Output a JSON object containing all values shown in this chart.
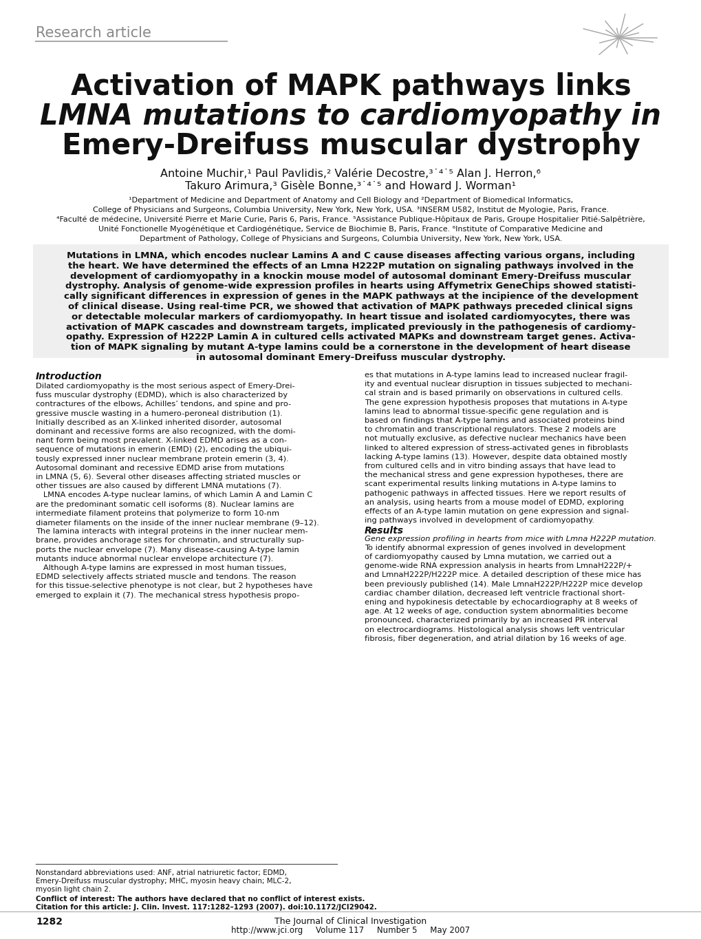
{
  "bg_color": "#ffffff",
  "header_label": "Research article",
  "title_line1": "Activation of MAPK pathways links",
  "title_line2a": "LMNA",
  "title_line2b": " mutations to cardiomyopathy in",
  "title_line3": "Emery-Dreifuss muscular dystrophy",
  "authors_line1": "Antoine Muchir,¹ Paul Pavlidis,² Valérie Decostre,³˙⁴˙⁵ Alan J. Herron,⁶",
  "authors_line2": "Takuro Arimura,³ Gisèle Bonne,³˙⁴˙⁵ and Howard J. Worman¹",
  "affil1": "¹Department of Medicine and Department of Anatomy and Cell Biology and ²Department of Biomedical Informatics,",
  "affil2": "College of Physicians and Surgeons, Columbia University, New York, New York, USA. ³INSERM U582, Institut de Myologie, Paris, France.",
  "affil3": "⁴Faculté de médecine, Université Pierre et Marie Curie, Paris 6, Paris, France. ⁵Assistance Publique-Hôpitaux de Paris, Groupe Hospitalier Pitié-Salpêtrière,",
  "affil4": "Unité Fonctionelle Myogénétique et Cardiogénétique, Service de Biochimie B, Paris, France. ⁶Institute of Comparative Medicine and",
  "affil5": "Department of Pathology, College of Physicians and Surgeons, Columbia University, New York, New York, USA.",
  "abstract_lines": [
    "Mutations in LMNA, which encodes nuclear Lamins A and C cause diseases affecting various organs, including",
    "the heart. We have determined the effects of an Lmna H222P mutation on signaling pathways involved in the",
    "development of cardiomyopathy in a knockin mouse model of autosomal dominant Emery-Dreifuss muscular",
    "dystrophy. Analysis of genome-wide expression profiles in hearts using Affymetrix GeneChips showed statisti-",
    "cally significant differences in expression of genes in the MAPK pathways at the incipience of the development",
    "of clinical disease. Using real-time PCR, we showed that activation of MAPK pathways preceded clinical signs",
    "or detectable molecular markers of cardiomyopathy. In heart tissue and isolated cardiomyocytes, there was",
    "activation of MAPK cascades and downstream targets, implicated previously in the pathogenesis of cardiomy-",
    "opathy. Expression of H222P Lamin A in cultured cells activated MAPKs and downstream target genes. Activa-",
    "tion of MAPK signaling by mutant A-type lamins could be a cornerstone in the development of heart disease",
    "in autosomal dominant Emery-Dreifuss muscular dystrophy."
  ],
  "intro_heading": "Introduction",
  "col1_lines": [
    "Dilated cardiomyopathy is the most serious aspect of Emery-Drei-",
    "fuss muscular dystrophy (EDMD), which is also characterized by",
    "contractures of the elbows, Achilles’ tendons, and spine and pro-",
    "gressive muscle wasting in a humero-peroneal distribution (1).",
    "Initially described as an X-linked inherited disorder, autosomal",
    "dominant and recessive forms are also recognized, with the domi-",
    "nant form being most prevalent. X-linked EDMD arises as a con-",
    "sequence of mutations in emerin (EMD) (2), encoding the ubiqui-",
    "tously expressed inner nuclear membrane protein emerin (3, 4).",
    "Autosomal dominant and recessive EDMD arise from mutations",
    "in LMNA (5, 6). Several other diseases affecting striated muscles or",
    "other tissues are also caused by different LMNA mutations (7).",
    "   LMNA encodes A-type nuclear lamins, of which Lamin A and Lamin C",
    "are the predominant somatic cell isoforms (8). Nuclear lamins are",
    "intermediate filament proteins that polymerize to form 10-nm",
    "diameter filaments on the inside of the inner nuclear membrane (9–12).",
    "The lamina interacts with integral proteins in the inner nuclear mem-",
    "brane, provides anchorage sites for chromatin, and structurally sup-",
    "ports the nuclear envelope (7). Many disease-causing A-type lamin",
    "mutants induce abnormal nuclear envelope architecture (7).",
    "   Although A-type lamins are expressed in most human tissues,",
    "EDMD selectively affects striated muscle and tendons. The reason",
    "for this tissue-selective phenotype is not clear, but 2 hypotheses have",
    "emerged to explain it (7). The mechanical stress hypothesis propo-"
  ],
  "col2_lines": [
    "es that mutations in A-type lamins lead to increased nuclear fragil-",
    "ity and eventual nuclear disruption in tissues subjected to mechani-",
    "cal strain and is based primarily on observations in cultured cells.",
    "The gene expression hypothesis proposes that mutations in A-type",
    "lamins lead to abnormal tissue-specific gene regulation and is",
    "based on findings that A-type lamins and associated proteins bind",
    "to chromatin and transcriptional regulators. These 2 models are",
    "not mutually exclusive, as defective nuclear mechanics have been",
    "linked to altered expression of stress-activated genes in fibroblasts",
    "lacking A-type lamins (13). However, despite data obtained mostly",
    "from cultured cells and in vitro binding assays that have lead to",
    "the mechanical stress and gene expression hypotheses, there are",
    "scant experimental results linking mutations in A-type lamins to",
    "pathogenic pathways in affected tissues. Here we report results of",
    "an analysis, using hearts from a mouse model of EDMD, exploring",
    "effects of an A-type lamin mutation on gene expression and signal-",
    "ing pathways involved in development of cardiomyopathy.",
    "   Results",
    "   Gene expression profiling in hearts from mice with Lmna H222P mutation.",
    "To identify abnormal expression of genes involved in development",
    "of cardiomyopathy caused by Lmna mutation, we carried out a",
    "genome-wide RNA expression analysis in hearts from LmnaH222P/+",
    "and LmnaH222P/H222P mice. A detailed description of these mice has",
    "been previously published (14). Male LmnaH222P/H222P mice develop",
    "cardiac chamber dilation, decreased left ventricle fractional short-",
    "ening and hypokinesis detectable by echocardiography at 8 weeks of",
    "age. At 12 weeks of age, conduction system abnormalities become",
    "pronounced, characterized primarily by an increased PR interval",
    "on electrocardiograms. Histological analysis shows left ventricular",
    "fibrosis, fiber degeneration, and atrial dilation by 16 weeks of age."
  ],
  "footer_abbrev_lines": [
    "Nonstandard abbreviations used: ANF, atrial natriuretic factor; EDMD,",
    "Emery-Dreifuss muscular dystrophy; MHC, myosin heavy chain; MLC-2,",
    "myosin light chain 2."
  ],
  "footer_conflict": "Conflict of interest: The authors have declared that no conflict of interest exists.",
  "footer_citation": "Citation for this article: J. Clin. Invest. 117:1282–1293 (2007). doi:10.1172/JCI29042.",
  "footer_page": "1282",
  "footer_journal": "The Journal of Clinical Investigation",
  "footer_url": "http://www.jci.org",
  "footer_volume": "Volume 117",
  "footer_issue": "Number 5",
  "footer_date": "May 2007",
  "header_color": "#888888",
  "line_color": "#aaaaaa",
  "text_color": "#111111",
  "star_color": "#999999"
}
